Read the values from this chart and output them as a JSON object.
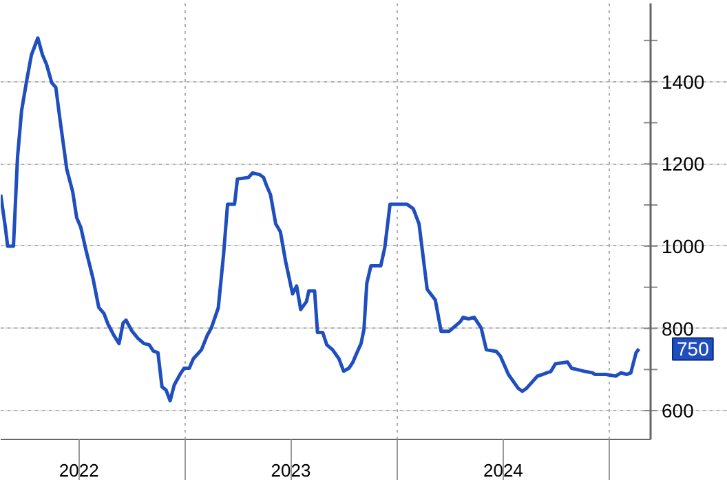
{
  "chart_data": {
    "type": "line",
    "color": "#1f4ebf",
    "x": [
      "2022-02-17",
      "2022-02-25",
      "2022-03-01",
      "2022-03-11",
      "2022-03-18",
      "2022-03-25",
      "2022-04-03",
      "2022-04-11",
      "2022-04-22",
      "2022-04-30",
      "2022-05-07",
      "2022-05-16",
      "2022-05-23",
      "2022-05-30",
      "2022-06-11",
      "2022-06-21",
      "2022-06-28",
      "2022-07-05",
      "2022-07-14",
      "2022-07-26",
      "2022-08-05",
      "2022-08-14",
      "2022-08-21",
      "2022-08-31",
      "2022-09-09",
      "2022-09-16",
      "2022-09-21",
      "2022-10-01",
      "2022-10-12",
      "2022-10-22",
      "2022-10-31",
      "2022-11-07",
      "2022-11-15",
      "2022-11-22",
      "2022-11-29",
      "2022-12-06",
      "2022-12-13",
      "2022-12-23",
      "2022-12-30",
      "2023-01-08",
      "2023-01-15",
      "2023-01-29",
      "2023-02-08",
      "2023-02-15",
      "2023-02-27",
      "2023-03-08",
      "2023-03-15",
      "2023-03-27",
      "2023-04-01",
      "2023-04-20",
      "2023-04-27",
      "2023-05-09",
      "2023-05-16",
      "2023-05-21",
      "2023-05-28",
      "2023-06-06",
      "2023-06-14",
      "2023-06-23",
      "2023-07-05",
      "2023-07-12",
      "2023-07-19",
      "2023-07-29",
      "2023-08-02",
      "2023-08-12",
      "2023-08-17",
      "2023-08-26",
      "2023-09-02",
      "2023-09-12",
      "2023-09-23",
      "2023-10-01",
      "2023-10-10",
      "2023-10-17",
      "2023-10-24",
      "2023-10-31",
      "2023-11-05",
      "2023-11-10",
      "2023-11-17",
      "2023-12-04",
      "2023-12-11",
      "2023-12-20",
      "2024-01-18",
      "2024-01-29",
      "2024-02-08",
      "2024-02-22",
      "2024-03-07",
      "2024-03-17",
      "2024-03-31",
      "2024-04-19",
      "2024-04-24",
      "2024-05-03",
      "2024-05-13",
      "2024-05-25",
      "2024-06-03",
      "2024-06-20",
      "2024-06-27",
      "2024-07-11",
      "2024-07-28",
      "2024-08-04",
      "2024-08-11",
      "2024-08-30",
      "2024-09-08",
      "2024-09-15",
      "2024-09-22",
      "2024-09-30",
      "2024-10-21",
      "2024-10-28",
      "2024-11-09",
      "2024-11-21",
      "2024-12-03",
      "2024-12-07",
      "2024-12-26",
      "2025-01-12",
      "2025-01-21",
      "2025-01-31",
      "2025-02-07",
      "2025-02-16",
      "2025-02-21"
    ],
    "values": [
      1125,
      1046,
      1000,
      1000,
      1216,
      1329,
      1404,
      1465,
      1506,
      1465,
      1442,
      1397,
      1386,
      1310,
      1186,
      1133,
      1069,
      1046,
      990,
      922,
      851,
      836,
      810,
      783,
      763,
      813,
      820,
      794,
      775,
      763,
      760,
      745,
      741,
      658,
      650,
      624,
      662,
      688,
      703,
      703,
      726,
      748,
      783,
      801,
      850,
      978,
      1102,
      1102,
      1163,
      1167,
      1178,
      1174,
      1167,
      1148,
      1125,
      1054,
      1035,
      963,
      884,
      903,
      846,
      865,
      891,
      891,
      790,
      790,
      760,
      748,
      726,
      696,
      703,
      718,
      741,
      763,
      797,
      910,
      952,
      952,
      997,
      1102,
      1102,
      1091,
      1054,
      895,
      869,
      793,
      793,
      816,
      827,
      823,
      827,
      801,
      748,
      744,
      733,
      688,
      654,
      647,
      654,
      684,
      688,
      692,
      695,
      714,
      718,
      703,
      699,
      695,
      692,
      688,
      688,
      684,
      692,
      688,
      692,
      741,
      750
    ],
    "xlim": [
      "2022-02-17",
      "2025-03-13"
    ],
    "xticks": [
      {
        "value": "2022-07-02",
        "label": "2022"
      },
      {
        "value": "2023-01-01",
        "label": null
      },
      {
        "value": "2023-07-02",
        "label": "2023"
      },
      {
        "value": "2024-01-01",
        "label": null
      },
      {
        "value": "2024-07-02",
        "label": "2024"
      },
      {
        "value": "2025-01-01",
        "label": null
      }
    ],
    "ylim": [
      530,
      1590
    ],
    "yticks": [
      600,
      {
        "value": 700,
        "label": null
      },
      800,
      {
        "value": 900,
        "label": null
      },
      1000,
      {
        "value": 1100,
        "label": null
      },
      1200,
      {
        "value": 1300,
        "label": null
      },
      1400,
      {
        "value": 1500,
        "label": null
      }
    ],
    "annotations": [
      {
        "text": "750",
        "x": "2025-02-21",
        "y": 750
      }
    ],
    "grid": true,
    "legend": false,
    "marker": "none",
    "line_style": "solid"
  }
}
